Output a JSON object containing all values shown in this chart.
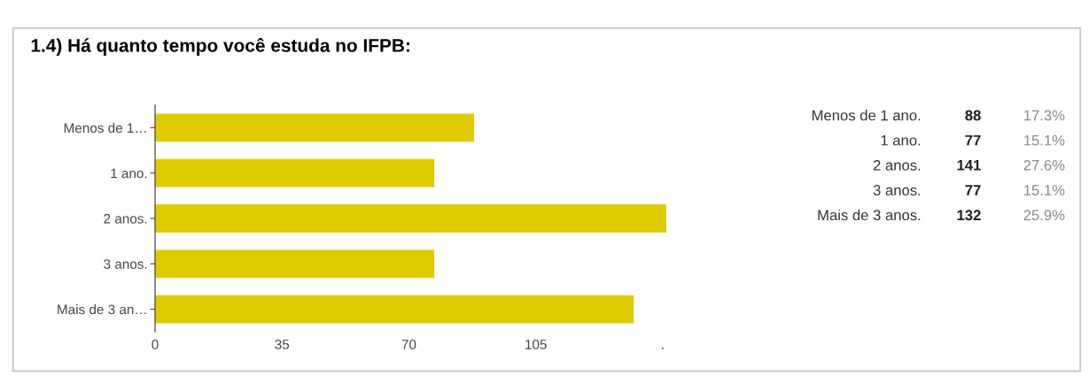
{
  "chart_data": {
    "type": "bar",
    "orientation": "horizontal",
    "title": "1.4) Há quanto tempo você estuda no IFPB:",
    "categories": [
      "Menos de 1…",
      "1 ano.",
      "2 anos.",
      "3 anos.",
      "Mais de 3 an…"
    ],
    "values": [
      88,
      77,
      141,
      77,
      132
    ],
    "color": "#dfcc00",
    "xlim": [
      0,
      141
    ],
    "xticks": [
      0,
      35,
      70,
      105,
      {
        "value": 140,
        "label": "."
      }
    ],
    "grid": false,
    "annotations": [
      "Menos de 1 ano.",
      "1 ano.",
      "2 anos.",
      "3 anos.",
      "Mais de 3 anos.",
      "88",
      "77",
      "141",
      "77",
      "132",
      "17.3%",
      "15.1%",
      "27.6%",
      "15.1%",
      "25.9%"
    ]
  }
}
